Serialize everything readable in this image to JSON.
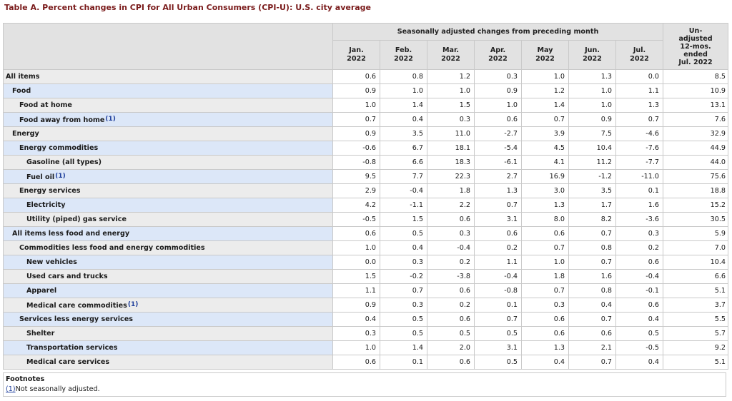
{
  "title": "Table A. Percent changes in CPI for All Urban Consumers (CPI-U): U.S. city average",
  "header": {
    "group_label": "Seasonally adjusted changes from preceding month",
    "unadjusted_label": [
      "Un-",
      "adjusted",
      "12-mos.",
      "ended",
      "Jul. 2022"
    ],
    "months": [
      [
        "Jan.",
        "2022"
      ],
      [
        "Feb.",
        "2022"
      ],
      [
        "Mar.",
        "2022"
      ],
      [
        "Apr.",
        "2022"
      ],
      [
        "May",
        "2022"
      ],
      [
        "Jun.",
        "2022"
      ],
      [
        "Jul.",
        "2022"
      ]
    ]
  },
  "rows": [
    {
      "label": "All items",
      "indent": 0,
      "tint": false,
      "footnote": "",
      "values": [
        "0.6",
        "0.8",
        "1.2",
        "0.3",
        "1.0",
        "1.3",
        "0.0",
        "8.5"
      ]
    },
    {
      "label": "Food",
      "indent": 1,
      "tint": true,
      "footnote": "",
      "values": [
        "0.9",
        "1.0",
        "1.0",
        "0.9",
        "1.2",
        "1.0",
        "1.1",
        "10.9"
      ]
    },
    {
      "label": "Food at home",
      "indent": 2,
      "tint": false,
      "footnote": "",
      "values": [
        "1.0",
        "1.4",
        "1.5",
        "1.0",
        "1.4",
        "1.0",
        "1.3",
        "13.1"
      ]
    },
    {
      "label": "Food away from home",
      "indent": 2,
      "tint": true,
      "footnote": "(1)",
      "values": [
        "0.7",
        "0.4",
        "0.3",
        "0.6",
        "0.7",
        "0.9",
        "0.7",
        "7.6"
      ]
    },
    {
      "label": "Energy",
      "indent": 1,
      "tint": false,
      "footnote": "",
      "values": [
        "0.9",
        "3.5",
        "11.0",
        "-2.7",
        "3.9",
        "7.5",
        "-4.6",
        "32.9"
      ]
    },
    {
      "label": "Energy commodities",
      "indent": 2,
      "tint": true,
      "footnote": "",
      "values": [
        "-0.6",
        "6.7",
        "18.1",
        "-5.4",
        "4.5",
        "10.4",
        "-7.6",
        "44.9"
      ]
    },
    {
      "label": "Gasoline (all types)",
      "indent": 3,
      "tint": false,
      "footnote": "",
      "values": [
        "-0.8",
        "6.6",
        "18.3",
        "-6.1",
        "4.1",
        "11.2",
        "-7.7",
        "44.0"
      ]
    },
    {
      "label": "Fuel oil",
      "indent": 3,
      "tint": true,
      "footnote": "(1)",
      "values": [
        "9.5",
        "7.7",
        "22.3",
        "2.7",
        "16.9",
        "-1.2",
        "-11.0",
        "75.6"
      ]
    },
    {
      "label": "Energy services",
      "indent": 2,
      "tint": false,
      "footnote": "",
      "values": [
        "2.9",
        "-0.4",
        "1.8",
        "1.3",
        "3.0",
        "3.5",
        "0.1",
        "18.8"
      ]
    },
    {
      "label": "Electricity",
      "indent": 3,
      "tint": true,
      "footnote": "",
      "values": [
        "4.2",
        "-1.1",
        "2.2",
        "0.7",
        "1.3",
        "1.7",
        "1.6",
        "15.2"
      ]
    },
    {
      "label": "Utility (piped) gas service",
      "indent": 3,
      "tint": false,
      "footnote": "",
      "values": [
        "-0.5",
        "1.5",
        "0.6",
        "3.1",
        "8.0",
        "8.2",
        "-3.6",
        "30.5"
      ]
    },
    {
      "label": "All items less food and energy",
      "indent": 1,
      "tint": true,
      "footnote": "",
      "values": [
        "0.6",
        "0.5",
        "0.3",
        "0.6",
        "0.6",
        "0.7",
        "0.3",
        "5.9"
      ]
    },
    {
      "label": "Commodities less food and energy commodities",
      "indent": 2,
      "tint": false,
      "footnote": "",
      "values": [
        "1.0",
        "0.4",
        "-0.4",
        "0.2",
        "0.7",
        "0.8",
        "0.2",
        "7.0"
      ]
    },
    {
      "label": "New vehicles",
      "indent": 3,
      "tint": true,
      "footnote": "",
      "values": [
        "0.0",
        "0.3",
        "0.2",
        "1.1",
        "1.0",
        "0.7",
        "0.6",
        "10.4"
      ]
    },
    {
      "label": "Used cars and trucks",
      "indent": 3,
      "tint": false,
      "footnote": "",
      "values": [
        "1.5",
        "-0.2",
        "-3.8",
        "-0.4",
        "1.8",
        "1.6",
        "-0.4",
        "6.6"
      ]
    },
    {
      "label": "Apparel",
      "indent": 3,
      "tint": true,
      "footnote": "",
      "values": [
        "1.1",
        "0.7",
        "0.6",
        "-0.8",
        "0.7",
        "0.8",
        "-0.1",
        "5.1"
      ]
    },
    {
      "label": "Medical care commodities",
      "indent": 3,
      "tint": false,
      "footnote": "(1)",
      "values": [
        "0.9",
        "0.3",
        "0.2",
        "0.1",
        "0.3",
        "0.4",
        "0.6",
        "3.7"
      ]
    },
    {
      "label": "Services less energy services",
      "indent": 2,
      "tint": true,
      "footnote": "",
      "values": [
        "0.4",
        "0.5",
        "0.6",
        "0.7",
        "0.6",
        "0.7",
        "0.4",
        "5.5"
      ]
    },
    {
      "label": "Shelter",
      "indent": 3,
      "tint": false,
      "footnote": "",
      "values": [
        "0.3",
        "0.5",
        "0.5",
        "0.5",
        "0.6",
        "0.6",
        "0.5",
        "5.7"
      ]
    },
    {
      "label": "Transportation services",
      "indent": 3,
      "tint": true,
      "footnote": "",
      "values": [
        "1.0",
        "1.4",
        "2.0",
        "3.1",
        "1.3",
        "2.1",
        "-0.5",
        "9.2"
      ]
    },
    {
      "label": "Medical care services",
      "indent": 3,
      "tint": false,
      "footnote": "",
      "values": [
        "0.6",
        "0.1",
        "0.6",
        "0.5",
        "0.4",
        "0.7",
        "0.4",
        "5.1"
      ]
    }
  ],
  "footnotes": {
    "heading": "Footnotes",
    "items": [
      {
        "marker": "(1)",
        "text": "Not seasonally adjusted."
      }
    ]
  }
}
